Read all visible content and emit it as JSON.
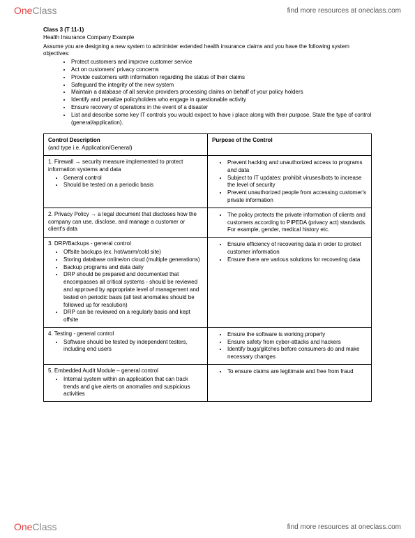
{
  "brand": {
    "part1": "One",
    "part2": "Class"
  },
  "header_link": "find more resources at oneclass.com",
  "footer_link": "find more resources at oneclass.com",
  "doc": {
    "class_line": "Class 3 (T 11-1)",
    "example_line": "Health Insurance Company Example",
    "assume": "Assume you are designing a new system to administer extended health insurance claims and you have the following system objectives:",
    "objectives": [
      "Protect customers and improve customer service",
      "Act on customers' privacy concerns",
      "Provide customers with information regarding the status of their claims",
      "Safeguard the integrity of the new system",
      "Maintain a database of all service providers processing claims on behalf of your policy holders",
      "Identify and penalize policyholders who engage in questionable activity",
      "Ensure recovery of operations in the event of a disaster",
      "List and describe some key IT controls you would expect to have i place along with their purpose. State the type of control (general/application)."
    ],
    "table": {
      "head_left_l1": "Control Description",
      "head_left_l2": "(and type i.e. Application/General)",
      "head_right": "Purpose of the Control",
      "rows": [
        {
          "desc_head": "1. Firewall → security measure implemented to protect information systems and data",
          "desc_items": [
            "General control",
            "Should be tested on a periodic basis"
          ],
          "purpose_items": [
            "Prevent hacking and unauthorized access to programs and data",
            "Subject to IT updates: prohibit viruses/bots to increase the level of security",
            "Prevent unauthorized people from accessing customer's private information"
          ]
        },
        {
          "desc_head": "2. Privacy Policy → a legal document that discloses how the company can use, disclose, and manage a customer or client's data",
          "desc_items": [],
          "purpose_items": [
            "The policy protects the private information of clients and customers according to PIPEDA (privacy act) standards. For example, gender, medical history etc."
          ]
        },
        {
          "desc_head": "3. DRP/Backups - general control",
          "desc_items": [
            "Offsite backups (ex. hot/warm/cold site)",
            "Storing database online/on cloud (multiple generations)",
            "Backup programs and data daily",
            "DRP should be prepared and documented that encompasses all critical systems - should be reviewed and approved by appropriate level of management and tested on periodic basis (all test anomalies should be followed up for resolution)",
            "DRP can be reviewed on a regularly basis and kept offsite"
          ],
          "purpose_items": [
            "Ensure efficiency of recovering data in order to protect customer information",
            "Ensure there are various solutions for recovering data"
          ]
        },
        {
          "desc_head": "4. Testing - general control",
          "desc_items": [
            "Software should be tested by independent testers, including end users"
          ],
          "purpose_items": [
            "Ensure the software is working properly",
            "Ensure safety from cyber-attacks and hackers",
            "Identify bugs/glitches before consumers do and make necessary changes"
          ]
        },
        {
          "desc_head": "5. Embedded Audit Module – general control",
          "desc_items": [
            "Internal system within an application that can track trends and give alerts on anomalies and suspicious activities"
          ],
          "purpose_items": [
            "To ensure claims are legitimate and free from fraud"
          ]
        }
      ]
    }
  }
}
